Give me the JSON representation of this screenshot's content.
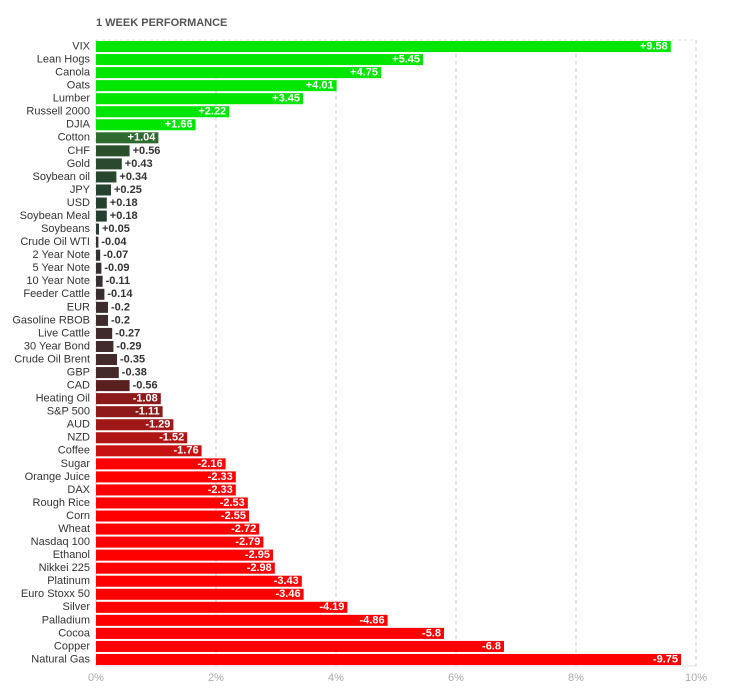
{
  "chart_data": {
    "type": "bar",
    "orientation": "horizontal",
    "title": "1 WEEK PERFORMANCE",
    "categories": [
      "VIX",
      "Lean Hogs",
      "Canola",
      "Oats",
      "Lumber",
      "Russell 2000",
      "DJIA",
      "Cotton",
      "CHF",
      "Gold",
      "Soybean oil",
      "JPY",
      "USD",
      "Soybean Meal",
      "Soybeans",
      "Crude Oil WTI",
      "2 Year Note",
      "5 Year Note",
      "10 Year Note",
      "Feeder Cattle",
      "EUR",
      "Gasoline RBOB",
      "Live Cattle",
      "30 Year Bond",
      "Crude Oil Brent",
      "GBP",
      "CAD",
      "Heating Oil",
      "S&P 500",
      "AUD",
      "NZD",
      "Coffee",
      "Sugar",
      "Orange Juice",
      "DAX",
      "Rough Rice",
      "Corn",
      "Wheat",
      "Nasdaq 100",
      "Ethanol",
      "Nikkei 225",
      "Platinum",
      "Euro Stoxx 50",
      "Silver",
      "Palladium",
      "Cocoa",
      "Copper",
      "Natural Gas"
    ],
    "values": [
      9.58,
      5.45,
      4.75,
      4.01,
      3.45,
      2.22,
      1.66,
      1.04,
      0.56,
      0.43,
      0.34,
      0.25,
      0.18,
      0.18,
      0.05,
      -0.04,
      -0.07,
      -0.09,
      -0.11,
      -0.14,
      -0.2,
      -0.2,
      -0.27,
      -0.29,
      -0.35,
      -0.38,
      -0.56,
      -1.08,
      -1.11,
      -1.29,
      -1.52,
      -1.76,
      -2.16,
      -2.33,
      -2.33,
      -2.53,
      -2.55,
      -2.72,
      -2.79,
      -2.95,
      -2.98,
      -3.43,
      -3.46,
      -4.19,
      -4.86,
      -5.8,
      -6.8,
      -9.75
    ],
    "value_labels": [
      "+9.58",
      "+5.45",
      "+4.75",
      "+4.01",
      "+3.45",
      "+2.22",
      "+1.66",
      "+1.04",
      "+0.56",
      "+0.43",
      "+0.34",
      "+0.25",
      "+0.18",
      "+0.18",
      "+0.05",
      "-0.04",
      "-0.07",
      "-0.09",
      "-0.11",
      "-0.14",
      "-0.2",
      "-0.2",
      "-0.27",
      "-0.29",
      "-0.35",
      "-0.38",
      "-0.56",
      "-1.08",
      "-1.11",
      "-1.29",
      "-1.52",
      "-1.76",
      "-2.16",
      "-2.33",
      "-2.33",
      "-2.53",
      "-2.55",
      "-2.72",
      "-2.79",
      "-2.95",
      "-2.98",
      "-3.43",
      "-3.46",
      "-4.19",
      "-4.86",
      "-5.8",
      "-6.8",
      "-9.75"
    ],
    "colors": [
      "#00e600",
      "#00e600",
      "#00e600",
      "#00e600",
      "#00e600",
      "#00e600",
      "#00e600",
      "#2f6b2f",
      "#2a4f2b",
      "#2a4a30",
      "#284530",
      "#27412f",
      "#26402f",
      "#26402f",
      "#263c2e",
      "#33302f",
      "#35302f",
      "#362f2f",
      "#372e2e",
      "#392d2d",
      "#3c2c2c",
      "#3c2c2c",
      "#402b2b",
      "#412b2b",
      "#442a2a",
      "#452a2a",
      "#5a1f1f",
      "#8c1a1a",
      "#8f1a1a",
      "#a01818",
      "#b01515",
      "#c81212",
      "#ff0000",
      "#ff0000",
      "#ff0000",
      "#ff0000",
      "#ff0000",
      "#ff0000",
      "#ff0000",
      "#ff0000",
      "#ff0000",
      "#ff0000",
      "#ff0000",
      "#ff0000",
      "#ff0000",
      "#ff0000",
      "#ff0000",
      "#ff0000"
    ],
    "xlim": [
      0,
      10
    ],
    "xticks": [
      {
        "value": 0,
        "label": "0%"
      },
      {
        "value": 2,
        "label": "2%"
      },
      {
        "value": 4,
        "label": "4%"
      },
      {
        "value": 6,
        "label": "6%"
      },
      {
        "value": 8,
        "label": "8%"
      },
      {
        "value": 10,
        "label": "10%"
      }
    ],
    "grid": true
  }
}
